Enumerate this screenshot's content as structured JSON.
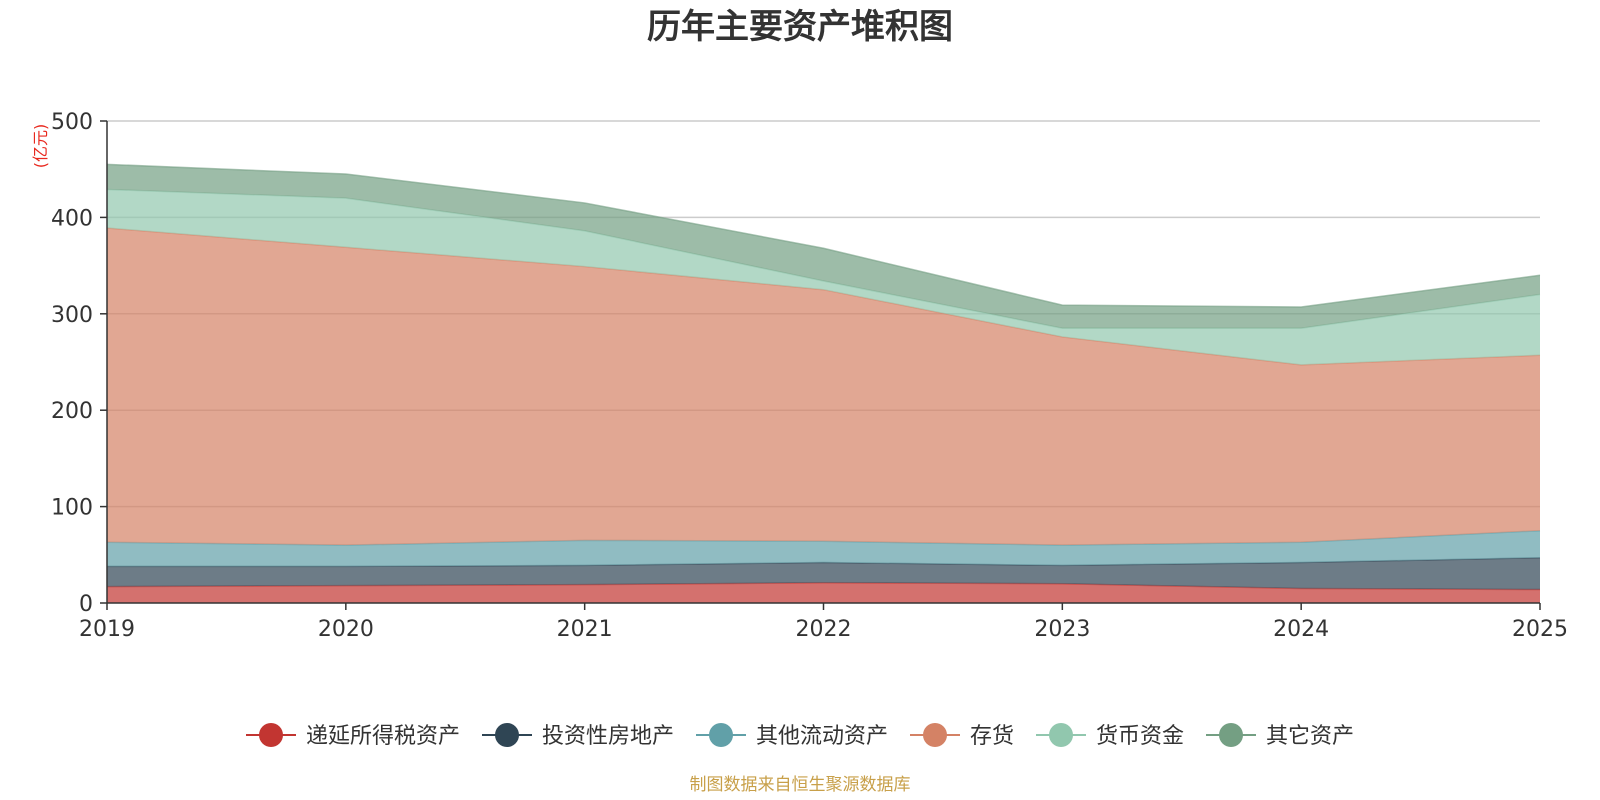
{
  "chart_data": {
    "type": "area",
    "stacked": true,
    "title": "历年主要资产堆积图",
    "ylabel": "(亿元)",
    "xlabel": "",
    "categories": [
      "2019",
      "2020",
      "2021",
      "2022",
      "2023",
      "2024",
      "2025"
    ],
    "ylim": [
      0,
      500
    ],
    "yticks": [
      0,
      100,
      200,
      300,
      400,
      500
    ],
    "grid": true,
    "legend_position": "bottom",
    "series": [
      {
        "name": "递延所得税资产",
        "color": "#c23531",
        "values": [
          17,
          18,
          19,
          21,
          20,
          15,
          14
        ]
      },
      {
        "name": "投资性房地产",
        "color": "#2f4554",
        "values": [
          21,
          20,
          20,
          21,
          19,
          27,
          33
        ]
      },
      {
        "name": "其他流动资产",
        "color": "#61a0a8",
        "values": [
          25,
          22,
          26,
          22,
          21,
          21,
          28
        ]
      },
      {
        "name": "存货",
        "color": "#d48265",
        "values": [
          326,
          309,
          284,
          261,
          216,
          184,
          182
        ]
      },
      {
        "name": "货币资金",
        "color": "#91c7ae",
        "values": [
          40,
          51,
          37,
          9,
          9,
          38,
          63
        ]
      },
      {
        "name": "其它资产",
        "color": "#749f83",
        "values": [
          26,
          25,
          29,
          34,
          24,
          22,
          20
        ]
      }
    ],
    "source_note": "制图数据来自恒生聚源数据库"
  },
  "colors": {
    "axis": "#333333",
    "grid": "#cccccc",
    "unit": "#e8281e",
    "source": "#c8a04a"
  }
}
